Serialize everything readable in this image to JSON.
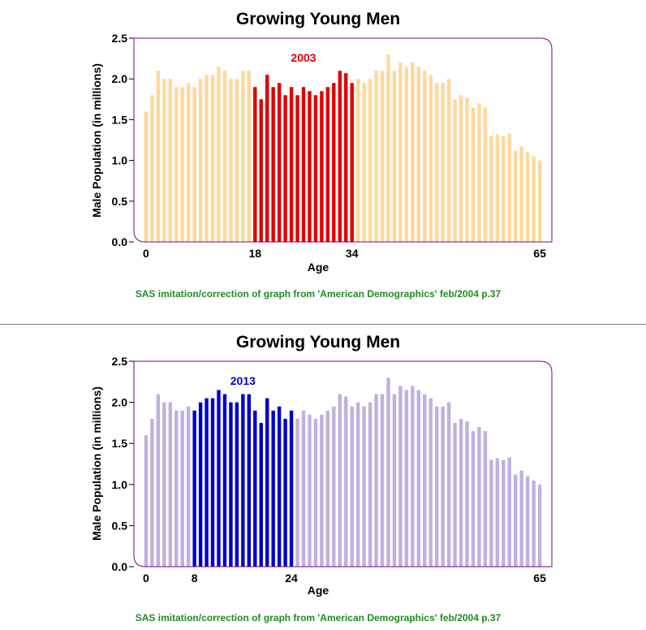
{
  "chart_data": [
    {
      "type": "bar",
      "title": "Growing Young Men",
      "xlabel": "Age",
      "ylabel": "Male Population (in millions)",
      "annotation": "2003",
      "footnote": "SAS imitation/correction of graph from 'American Demographics'  feb/2004  p.37",
      "x": [
        0,
        1,
        2,
        3,
        4,
        5,
        6,
        7,
        8,
        9,
        10,
        11,
        12,
        13,
        14,
        15,
        16,
        17,
        18,
        19,
        20,
        21,
        22,
        23,
        24,
        25,
        26,
        27,
        28,
        29,
        30,
        31,
        32,
        33,
        34,
        35,
        36,
        37,
        38,
        39,
        40,
        41,
        42,
        43,
        44,
        45,
        46,
        47,
        48,
        49,
        50,
        51,
        52,
        53,
        54,
        55,
        56,
        57,
        58,
        59,
        60,
        61,
        62,
        63,
        64,
        65
      ],
      "values": [
        1.6,
        1.8,
        2.1,
        2.0,
        2.0,
        1.9,
        1.9,
        1.95,
        1.9,
        2.0,
        2.05,
        2.05,
        2.15,
        2.1,
        2.0,
        2.0,
        2.1,
        2.1,
        1.9,
        1.75,
        2.05,
        1.9,
        1.95,
        1.8,
        1.9,
        1.8,
        1.9,
        1.85,
        1.8,
        1.85,
        1.9,
        1.95,
        2.1,
        2.07,
        1.95,
        2.0,
        1.95,
        2.0,
        2.1,
        2.1,
        2.3,
        2.1,
        2.2,
        2.15,
        2.2,
        2.15,
        2.1,
        2.05,
        1.95,
        1.95,
        2.0,
        1.75,
        1.8,
        1.77,
        1.65,
        1.7,
        1.65,
        1.3,
        1.32,
        1.3,
        1.33,
        1.12,
        1.17,
        1.1,
        1.05,
        1.0
      ],
      "highlight_range": [
        18,
        34
      ],
      "xticks": [
        0,
        18,
        34,
        65
      ],
      "yticks": [
        0.0,
        0.5,
        1.0,
        1.5,
        2.0,
        2.5
      ],
      "ytick_labels": [
        "0.0",
        "0.5",
        "1.0",
        "1.5",
        "2.0",
        "2.5"
      ],
      "ylim": [
        0,
        2.5
      ],
      "xlim": [
        -2,
        67
      ],
      "base_color": "#ffd89b",
      "highlight_color": "#e00000",
      "annotation_color": "#e00000",
      "frame_color": "#800080"
    },
    {
      "type": "bar",
      "title": "Growing Young Men",
      "xlabel": "Age",
      "ylabel": "Male Population (in millions)",
      "annotation": "2013",
      "footnote": "SAS imitation/correction of graph from 'American Demographics'  feb/2004  p.37",
      "x": [
        0,
        1,
        2,
        3,
        4,
        5,
        6,
        7,
        8,
        9,
        10,
        11,
        12,
        13,
        14,
        15,
        16,
        17,
        18,
        19,
        20,
        21,
        22,
        23,
        24,
        25,
        26,
        27,
        28,
        29,
        30,
        31,
        32,
        33,
        34,
        35,
        36,
        37,
        38,
        39,
        40,
        41,
        42,
        43,
        44,
        45,
        46,
        47,
        48,
        49,
        50,
        51,
        52,
        53,
        54,
        55,
        56,
        57,
        58,
        59,
        60,
        61,
        62,
        63,
        64,
        65
      ],
      "values": [
        1.6,
        1.8,
        2.1,
        2.0,
        2.0,
        1.9,
        1.9,
        1.95,
        1.9,
        2.0,
        2.05,
        2.05,
        2.15,
        2.1,
        2.0,
        2.0,
        2.1,
        2.1,
        1.9,
        1.75,
        2.05,
        1.9,
        1.95,
        1.8,
        1.9,
        1.8,
        1.9,
        1.85,
        1.8,
        1.85,
        1.9,
        1.95,
        2.1,
        2.07,
        1.95,
        2.0,
        1.95,
        2.0,
        2.1,
        2.1,
        2.3,
        2.1,
        2.2,
        2.15,
        2.2,
        2.15,
        2.1,
        2.05,
        1.95,
        1.95,
        2.0,
        1.75,
        1.8,
        1.77,
        1.65,
        1.7,
        1.65,
        1.3,
        1.32,
        1.3,
        1.33,
        1.12,
        1.17,
        1.1,
        1.05,
        1.0
      ],
      "highlight_range": [
        8,
        24
      ],
      "xticks": [
        0,
        8,
        24,
        65
      ],
      "yticks": [
        0.0,
        0.5,
        1.0,
        1.5,
        2.0,
        2.5
      ],
      "ytick_labels": [
        "0.0",
        "0.5",
        "1.0",
        "1.5",
        "2.0",
        "2.5"
      ],
      "ylim": [
        0,
        2.5
      ],
      "xlim": [
        -2,
        67
      ],
      "base_color": "#c0b0e0",
      "highlight_color": "#0000cc",
      "annotation_color": "#0000cc",
      "frame_color": "#800080"
    }
  ]
}
